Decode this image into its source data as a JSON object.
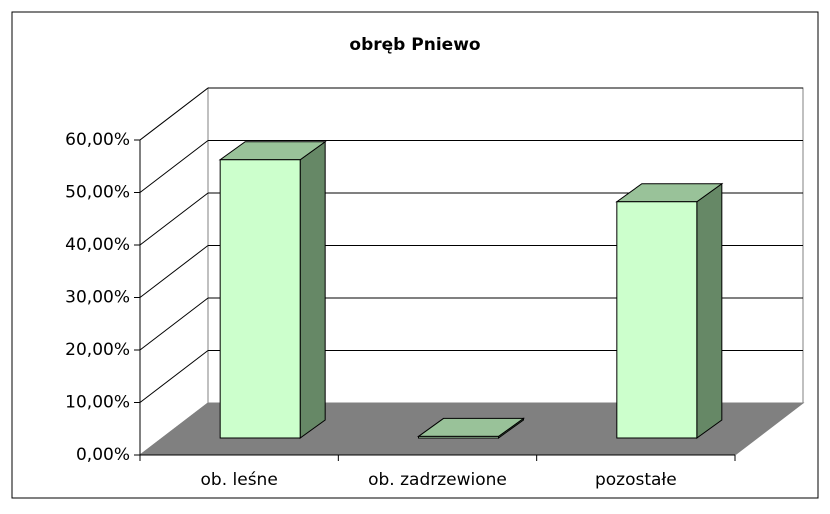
{
  "chart_data": {
    "type": "bar3d",
    "title": "obręb Pniewo",
    "categories": [
      "ob. leśne",
      "ob. zadrzewione",
      "pozostałe"
    ],
    "values": [
      53,
      0.3,
      45
    ],
    "color": "#ccffcc",
    "ylim": [
      0,
      60
    ],
    "yticks": [
      {
        "value": 0,
        "label": "0,00%"
      },
      {
        "value": 10,
        "label": "10,00%"
      },
      {
        "value": 20,
        "label": "20,00%"
      },
      {
        "value": 30,
        "label": "30,00%"
      },
      {
        "value": 40,
        "label": "40,00%"
      },
      {
        "value": 50,
        "label": "50,00%"
      },
      {
        "value": 60,
        "label": "60,00%"
      }
    ],
    "grid": true
  }
}
